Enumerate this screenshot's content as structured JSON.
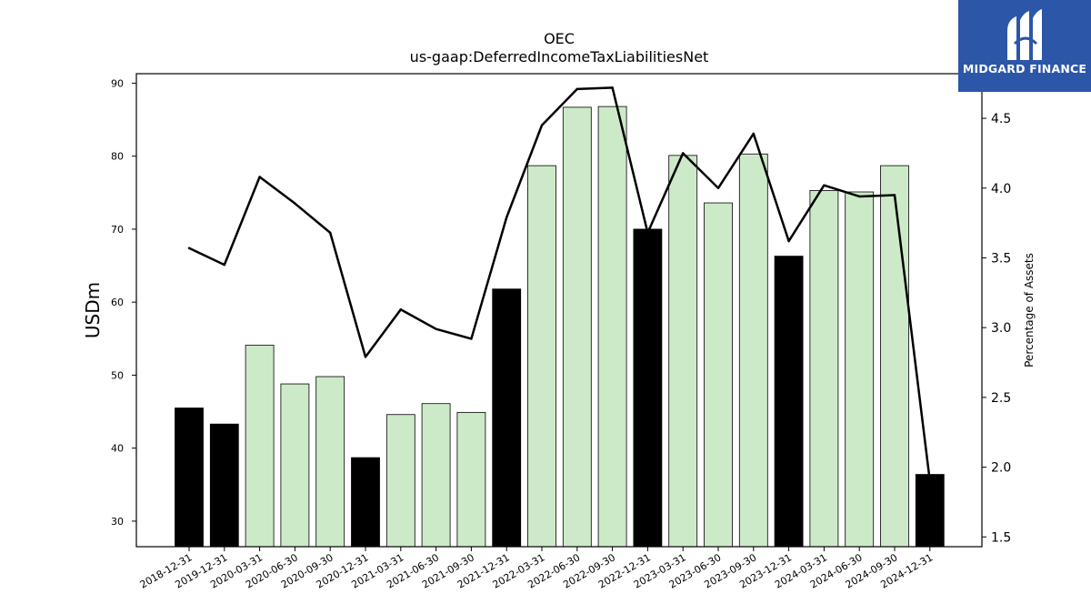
{
  "chart_data": {
    "type": "bar",
    "title": "OEC",
    "subtitle": "us-gaap:DeferredIncomeTaxLiabilitiesNet",
    "ylabel": "USDm",
    "y2label": "Percentage of Assets",
    "ylim": [
      26.5,
      91.3
    ],
    "y2lim": [
      1.43,
      4.82
    ],
    "yticks": [
      30,
      40,
      50,
      60,
      70,
      80,
      90
    ],
    "y2ticks": [
      "1.5",
      "2.0",
      "2.5",
      "3.0",
      "3.5",
      "4.0",
      "4.5"
    ],
    "categories": [
      "2018-12-31",
      "2019-12-31",
      "2020-03-31",
      "2020-06-30",
      "2020-09-30",
      "2020-12-31",
      "2021-03-31",
      "2021-06-30",
      "2021-09-30",
      "2021-12-31",
      "2022-03-31",
      "2022-06-30",
      "2022-09-30",
      "2022-12-31",
      "2023-03-31",
      "2023-06-30",
      "2023-09-30",
      "2023-12-31",
      "2024-03-31",
      "2024-06-30",
      "2024-09-30",
      "2024-12-31"
    ],
    "series": [
      {
        "type": "bar",
        "values": [
          45.5,
          43.3,
          54.1,
          48.8,
          49.8,
          38.7,
          44.6,
          46.1,
          44.9,
          61.8,
          78.7,
          86.7,
          86.8,
          70.0,
          80.1,
          73.6,
          80.3,
          66.3,
          75.3,
          75.1,
          78.7,
          36.4
        ],
        "annual_flags": [
          true,
          true,
          false,
          false,
          false,
          true,
          false,
          false,
          false,
          true,
          false,
          false,
          false,
          true,
          false,
          false,
          false,
          true,
          false,
          false,
          false,
          true
        ]
      },
      {
        "type": "line",
        "axis": "right",
        "values": [
          3.57,
          3.45,
          4.08,
          3.89,
          3.68,
          2.79,
          3.13,
          2.99,
          2.92,
          3.79,
          4.45,
          4.71,
          4.72,
          3.68,
          4.25,
          4.0,
          4.39,
          3.62,
          4.02,
          3.94,
          3.95,
          1.9
        ]
      }
    ],
    "colors": {
      "annual_bar": "#000000",
      "quarter_bar": "#cdeac8",
      "bar_edge": "#000000",
      "line": "#000000"
    },
    "grid": false,
    "legend": "none"
  },
  "logo": {
    "text": "MIDGARD FINANCE",
    "icon": "midgard-logo-icon",
    "background": "#2c56a8"
  }
}
